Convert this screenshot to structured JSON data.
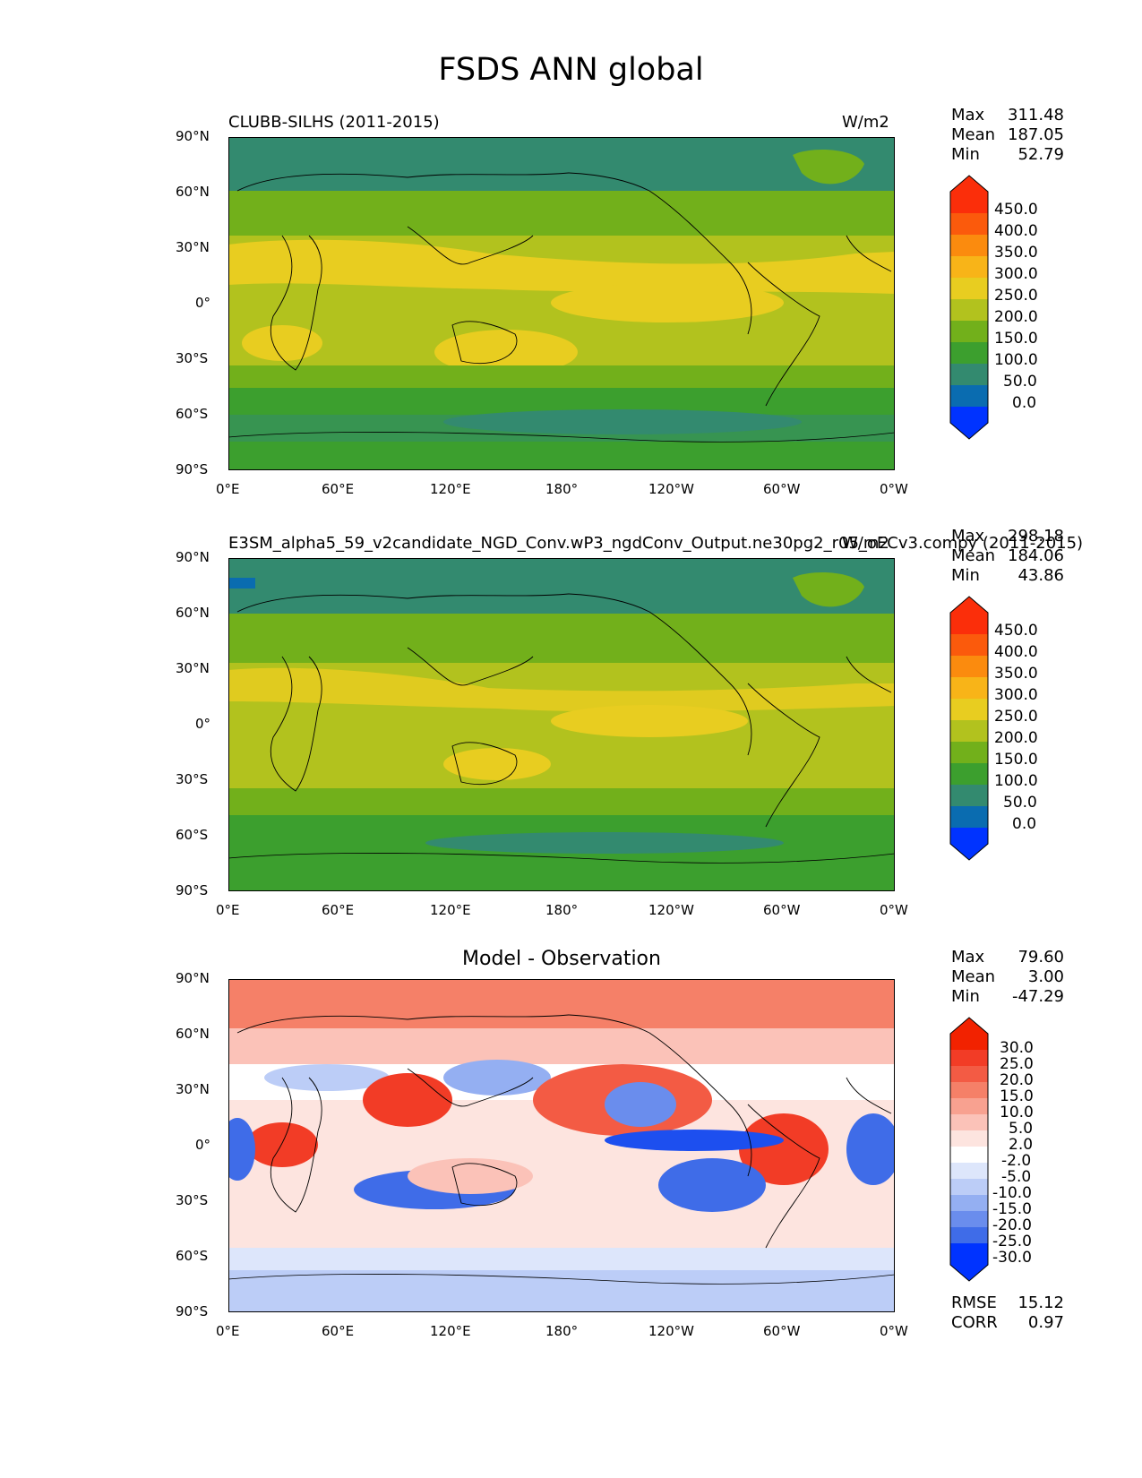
{
  "title": "FSDS ANN global",
  "panels": [
    {
      "left_title": "CLUBB-SILHS (2011-2015)",
      "center_title": "",
      "right_title": "W/m2",
      "stats": [
        {
          "label": "Max",
          "value": "311.48"
        },
        {
          "label": "Mean",
          "value": "187.05"
        },
        {
          "label": "Min",
          "value": "52.79"
        }
      ],
      "colorbar_labels": [
        "450.0",
        "400.0",
        "350.0",
        "300.0",
        "250.0",
        "200.0",
        "150.0",
        "100.0",
        "50.0",
        "0.0"
      ]
    },
    {
      "left_title": "E3SM_alpha5_59_v2candidate_NGD_Conv.wP3_ngdConv_Output.ne30pg2_r05_oECv3.compy (2011-2015)",
      "center_title": "",
      "right_title": "W/m2",
      "stats": [
        {
          "label": "Max",
          "value": "298.18"
        },
        {
          "label": "Mean",
          "value": "184.06"
        },
        {
          "label": "Min",
          "value": "43.86"
        }
      ],
      "colorbar_labels": [
        "450.0",
        "400.0",
        "350.0",
        "300.0",
        "250.0",
        "200.0",
        "150.0",
        "100.0",
        "50.0",
        "0.0"
      ]
    },
    {
      "left_title": "",
      "center_title": "Model - Observation",
      "right_title": "",
      "stats": [
        {
          "label": "Max",
          "value": "79.60"
        },
        {
          "label": "Mean",
          "value": "3.00"
        },
        {
          "label": "Min",
          "value": "-47.29"
        }
      ],
      "colorbar_labels": [
        "30.0",
        "25.0",
        "20.0",
        "15.0",
        "10.0",
        "5.0",
        "2.0",
        "-2.0",
        "-5.0",
        "-10.0",
        "-15.0",
        "-20.0",
        "-25.0",
        "-30.0"
      ],
      "metrics": [
        {
          "label": "RMSE",
          "value": "15.12"
        },
        {
          "label": "CORR",
          "value": "0.97"
        }
      ]
    }
  ],
  "lat_ticks": [
    "90°N",
    "60°N",
    "30°N",
    "0°",
    "30°S",
    "60°S",
    "90°S"
  ],
  "lon_ticks": [
    "0°E",
    "60°E",
    "120°E",
    "180°",
    "120°W",
    "60°W",
    "0°W"
  ],
  "colors": {
    "fsds_scale": [
      "#0033ff",
      "#0a6cb0",
      "#338a6f",
      "#3c9f2e",
      "#72b01b",
      "#b2c21e",
      "#e8cd20",
      "#f8b418",
      "#fb8b0e",
      "#fb5a0c",
      "#fb2e0a"
    ],
    "diff_scale": [
      "#0033ff",
      "#1d4fef",
      "#3f6ce8",
      "#6a8ded",
      "#94aff2",
      "#bccdf7",
      "#dde6fb",
      "#ffffff",
      "#fde4df",
      "#fbc2b8",
      "#f8a190",
      "#f58068",
      "#f35b44",
      "#f23c26",
      "#f22200"
    ]
  }
}
